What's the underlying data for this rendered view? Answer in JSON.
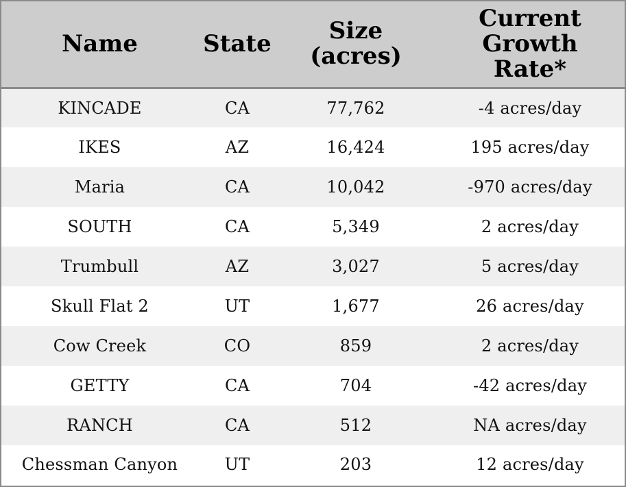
{
  "table": {
    "headers": [
      {
        "lines": [
          "Name"
        ]
      },
      {
        "lines": [
          "State"
        ]
      },
      {
        "lines": [
          "Size",
          "(acres)"
        ]
      },
      {
        "lines": [
          "Current",
          "Growth",
          "Rate*"
        ]
      }
    ],
    "rows": [
      {
        "name": "KINCADE",
        "state": "CA",
        "size": "77,762",
        "rate": "-4 acres/day"
      },
      {
        "name": "IKES",
        "state": "AZ",
        "size": "16,424",
        "rate": "195 acres/day"
      },
      {
        "name": "Maria",
        "state": "CA",
        "size": "10,042",
        "rate": "-970 acres/day"
      },
      {
        "name": "SOUTH",
        "state": "CA",
        "size": "5,349",
        "rate": "2 acres/day"
      },
      {
        "name": "Trumbull",
        "state": "AZ",
        "size": "3,027",
        "rate": "5 acres/day"
      },
      {
        "name": "Skull Flat 2",
        "state": "UT",
        "size": "1,677",
        "rate": "26 acres/day"
      },
      {
        "name": "Cow Creek",
        "state": "CO",
        "size": "859",
        "rate": "2 acres/day"
      },
      {
        "name": "GETTY",
        "state": "CA",
        "size": "704",
        "rate": "-42 acres/day"
      },
      {
        "name": "RANCH",
        "state": "CA",
        "size": "512",
        "rate": "NA acres/day"
      },
      {
        "name": "Chessman Canyon",
        "state": "UT",
        "size": "203",
        "rate": "12 acres/day"
      }
    ]
  },
  "colors": {
    "header_bg": "#cdcdcd",
    "row_alt_bg": "#efefef",
    "row_bg": "#ffffff",
    "border": "#8a8a8a"
  }
}
